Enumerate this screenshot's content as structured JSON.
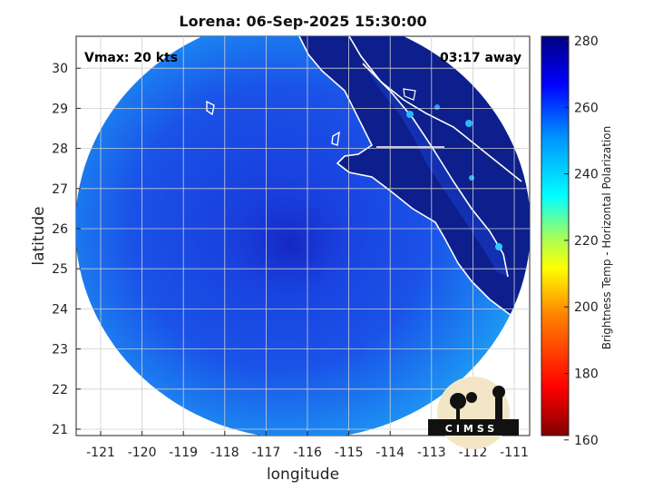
{
  "title": "Lorena: 06-Sep-2025 15:30:00",
  "vmax_label": "Vmax: 20 kts",
  "time_away_label": "03:17 away",
  "logo_text": "CIMSS",
  "xlabel": "longitude",
  "ylabel": "latitude",
  "colorbar_label": "Brightness Temp - Horizontal Polarization",
  "axes": {
    "x_ticks": [
      "-121",
      "-120",
      "-119",
      "-118",
      "-117",
      "-116",
      "-115",
      "-114",
      "-113",
      "-112",
      "-111"
    ],
    "y_ticks": [
      "21",
      "22",
      "23",
      "24",
      "25",
      "26",
      "27",
      "28",
      "29",
      "30"
    ]
  },
  "colorbar": {
    "ticks": [
      "280",
      "260",
      "240",
      "220",
      "200",
      "180",
      "160"
    ],
    "range": [
      160,
      280
    ],
    "colors": [
      "#800000",
      "#ff0000",
      "#ff8000",
      "#ffff00",
      "#80ff80",
      "#00ffff",
      "#0080ff",
      "#0000ff",
      "#000080"
    ]
  },
  "colors": {
    "ocean_light": "#1e90ff",
    "ocean_dark": "#1a4bd6",
    "land": "#0d1f8c",
    "coast": "#ffffff",
    "grid": "#d0d0d0"
  }
}
